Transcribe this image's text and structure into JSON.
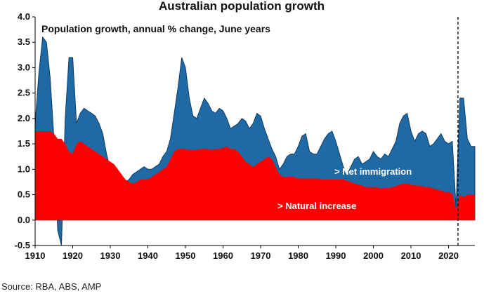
{
  "chart_data": {
    "type": "area",
    "title": "Australian population growth",
    "subtitle": "Population growth, annual % change, June years",
    "source": "Source: RBA, ABS, AMP",
    "xlim": [
      1910,
      2027
    ],
    "ylim": [
      -0.5,
      4.0
    ],
    "x_ticks": [
      "1910",
      "1920",
      "1930",
      "1940",
      "1950",
      "1960",
      "1970",
      "1980",
      "1990",
      "2000",
      "2010",
      "2020"
    ],
    "y_ticks": [
      "4.0",
      "3.5",
      "3.0",
      "2.5",
      "2.0",
      "1.5",
      "1.0",
      "0.5",
      "0.0",
      "-0.5"
    ],
    "grid": false,
    "vertical_marker": {
      "x": 2022.5,
      "style": "dashed"
    },
    "annotations": {
      "net_immigration": "> Net immigration",
      "natural_increase": "> Natural increase"
    },
    "colors": {
      "net_immigration": "#1f6aa5",
      "natural_increase": "#ff0000"
    },
    "series": [
      {
        "name": "Net immigration",
        "role": "total",
        "x": [
          1910,
          1911,
          1912,
          1913,
          1914,
          1915,
          1916,
          1917,
          1918,
          1919,
          1920,
          1921,
          1922,
          1923,
          1924,
          1925,
          1926,
          1927,
          1928,
          1929,
          1930,
          1931,
          1932,
          1933,
          1934,
          1935,
          1936,
          1937,
          1938,
          1939,
          1940,
          1941,
          1942,
          1943,
          1944,
          1945,
          1946,
          1947,
          1948,
          1949,
          1950,
          1951,
          1952,
          1953,
          1954,
          1955,
          1956,
          1957,
          1958,
          1959,
          1960,
          1961,
          1962,
          1963,
          1964,
          1965,
          1966,
          1967,
          1968,
          1969,
          1970,
          1971,
          1972,
          1973,
          1974,
          1975,
          1976,
          1977,
          1978,
          1979,
          1980,
          1981,
          1982,
          1983,
          1984,
          1985,
          1986,
          1987,
          1988,
          1989,
          1990,
          1991,
          1992,
          1993,
          1994,
          1995,
          1996,
          1997,
          1998,
          1999,
          2000,
          2001,
          2002,
          2003,
          2004,
          2005,
          2006,
          2007,
          2008,
          2009,
          2010,
          2011,
          2012,
          2013,
          2014,
          2015,
          2016,
          2017,
          2018,
          2019,
          2020,
          2021,
          2022,
          2023,
          2024,
          2025,
          2026,
          2027
        ],
        "values": [
          1.9,
          2.9,
          3.6,
          3.5,
          2.8,
          1.6,
          -0.2,
          -0.5,
          2.0,
          3.2,
          3.2,
          1.9,
          2.1,
          2.2,
          2.15,
          2.1,
          2.05,
          1.9,
          1.7,
          1.3,
          1.0,
          0.8,
          0.75,
          0.72,
          0.75,
          0.8,
          0.9,
          0.95,
          1.0,
          1.05,
          1.0,
          1.0,
          1.05,
          1.1,
          1.25,
          1.35,
          1.6,
          2.1,
          2.6,
          3.2,
          3.0,
          2.4,
          2.05,
          2.0,
          2.2,
          2.4,
          2.3,
          2.15,
          2.1,
          2.2,
          2.15,
          2.0,
          1.8,
          1.85,
          1.9,
          2.0,
          1.95,
          1.8,
          1.9,
          2.1,
          2.05,
          1.8,
          1.6,
          1.4,
          1.25,
          1.0,
          1.1,
          1.25,
          1.3,
          1.3,
          1.45,
          1.65,
          1.7,
          1.35,
          1.3,
          1.3,
          1.45,
          1.6,
          1.7,
          1.75,
          1.55,
          1.3,
          1.05,
          0.9,
          1.05,
          1.2,
          1.25,
          1.1,
          1.15,
          1.2,
          1.35,
          1.25,
          1.2,
          1.3,
          1.25,
          1.4,
          1.55,
          1.9,
          2.05,
          2.1,
          1.75,
          1.55,
          1.7,
          1.75,
          1.7,
          1.45,
          1.5,
          1.6,
          1.7,
          1.55,
          1.5,
          1.55,
          0.25,
          2.4,
          2.4,
          1.6,
          1.45,
          1.45
        ]
      },
      {
        "name": "Natural increase",
        "role": "base",
        "x": [
          1910,
          1911,
          1912,
          1913,
          1914,
          1915,
          1916,
          1917,
          1918,
          1919,
          1920,
          1921,
          1922,
          1923,
          1924,
          1925,
          1926,
          1927,
          1928,
          1929,
          1930,
          1931,
          1932,
          1933,
          1934,
          1935,
          1936,
          1937,
          1938,
          1939,
          1940,
          1941,
          1942,
          1943,
          1944,
          1945,
          1946,
          1947,
          1948,
          1949,
          1950,
          1951,
          1952,
          1953,
          1954,
          1955,
          1956,
          1957,
          1958,
          1959,
          1960,
          1961,
          1962,
          1963,
          1964,
          1965,
          1966,
          1967,
          1968,
          1969,
          1970,
          1971,
          1972,
          1973,
          1974,
          1975,
          1976,
          1977,
          1978,
          1979,
          1980,
          1981,
          1982,
          1983,
          1984,
          1985,
          1986,
          1987,
          1988,
          1989,
          1990,
          1991,
          1992,
          1993,
          1994,
          1995,
          1996,
          1997,
          1998,
          1999,
          2000,
          2001,
          2002,
          2003,
          2004,
          2005,
          2006,
          2007,
          2008,
          2009,
          2010,
          2011,
          2012,
          2013,
          2014,
          2015,
          2016,
          2017,
          2018,
          2019,
          2020,
          2021,
          2022,
          2023,
          2024,
          2025,
          2026,
          2027
        ],
        "values": [
          1.75,
          1.75,
          1.75,
          1.75,
          1.75,
          1.7,
          1.6,
          1.6,
          1.5,
          1.35,
          1.3,
          1.5,
          1.55,
          1.5,
          1.45,
          1.4,
          1.35,
          1.3,
          1.25,
          1.2,
          1.15,
          1.1,
          1.0,
          0.9,
          0.8,
          0.75,
          0.72,
          0.75,
          0.8,
          0.8,
          0.8,
          0.85,
          0.9,
          0.95,
          1.0,
          1.05,
          1.2,
          1.35,
          1.4,
          1.4,
          1.4,
          1.38,
          1.38,
          1.38,
          1.4,
          1.4,
          1.4,
          1.38,
          1.4,
          1.4,
          1.42,
          1.45,
          1.4,
          1.4,
          1.35,
          1.25,
          1.15,
          1.1,
          1.05,
          1.1,
          1.15,
          1.2,
          1.25,
          1.2,
          1.05,
          0.9,
          0.85,
          0.85,
          0.85,
          0.85,
          0.82,
          0.82,
          0.82,
          0.82,
          0.82,
          0.82,
          0.8,
          0.8,
          0.8,
          0.8,
          0.8,
          0.8,
          0.8,
          0.78,
          0.75,
          0.72,
          0.7,
          0.68,
          0.65,
          0.65,
          0.65,
          0.65,
          0.62,
          0.63,
          0.63,
          0.65,
          0.67,
          0.7,
          0.72,
          0.72,
          0.7,
          0.68,
          0.68,
          0.67,
          0.65,
          0.65,
          0.62,
          0.6,
          0.58,
          0.55,
          0.55,
          0.52,
          0.2,
          0.5,
          0.45,
          0.5,
          0.5,
          0.5
        ]
      }
    ]
  }
}
